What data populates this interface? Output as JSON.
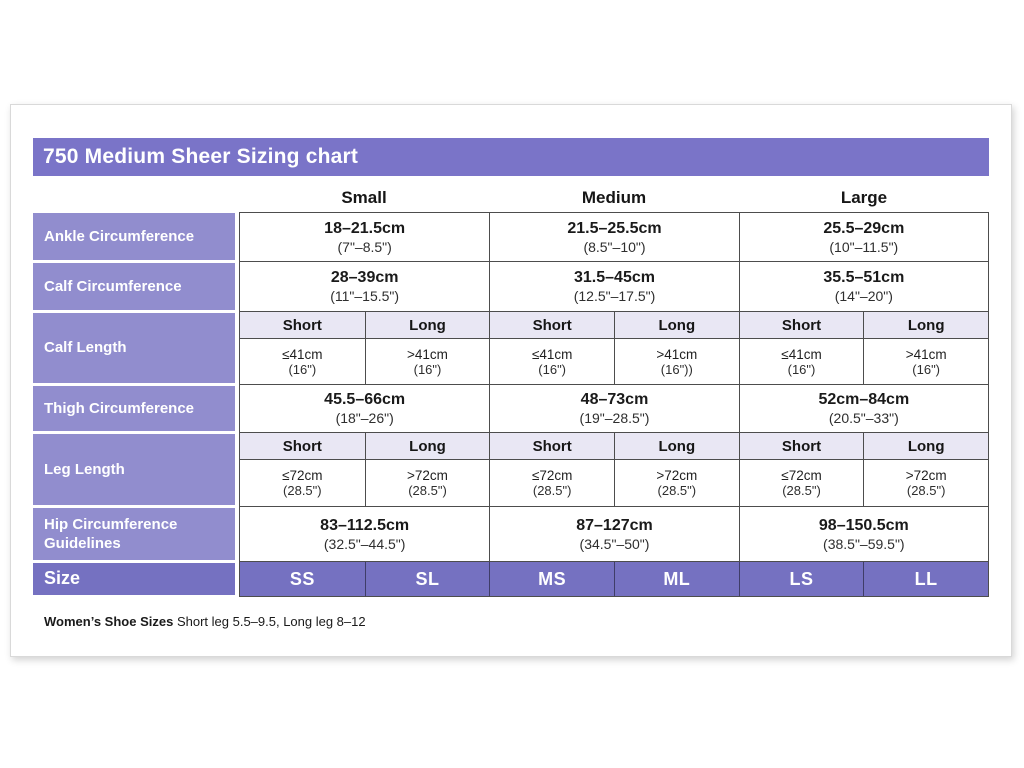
{
  "title": "750 Medium Sheer Sizing chart",
  "columns": {
    "small": "Small",
    "medium": "Medium",
    "large": "Large"
  },
  "rows": {
    "ankle": {
      "label": "Ankle Circumference",
      "small": {
        "cm": "18–21.5cm",
        "in": "(7\"–8.5\")"
      },
      "medium": {
        "cm": "21.5–25.5cm",
        "in": "(8.5\"–10\")"
      },
      "large": {
        "cm": "25.5–29cm",
        "in": "(10\"–11.5\")"
      }
    },
    "calf_circumference": {
      "label": "Calf Circumference",
      "small": {
        "cm": "28–39cm",
        "in": "(11\"–15.5\")"
      },
      "medium": {
        "cm": "31.5–45cm",
        "in": "(12.5\"–17.5\")"
      },
      "large": {
        "cm": "35.5–51cm",
        "in": "(14\"–20\")"
      }
    },
    "calf_length": {
      "label": "Calf Length",
      "cols": [
        {
          "head": "Short",
          "cm": "≤41cm",
          "in": "(16\")"
        },
        {
          "head": "Long",
          "cm": ">41cm",
          "in": "(16\")"
        },
        {
          "head": "Short",
          "cm": "≤41cm",
          "in": "(16\")"
        },
        {
          "head": "Long",
          "cm": ">41cm",
          "in": "(16\"))"
        },
        {
          "head": "Short",
          "cm": "≤41cm",
          "in": "(16\")"
        },
        {
          "head": "Long",
          "cm": ">41cm",
          "in": "(16\")"
        }
      ]
    },
    "thigh": {
      "label": "Thigh Circumference",
      "small": {
        "cm": "45.5–66cm",
        "in": "(18\"–26\")"
      },
      "medium": {
        "cm": "48–73cm",
        "in": "(19\"–28.5\")"
      },
      "large": {
        "cm": "52cm–84cm",
        "in": "(20.5\"–33\")"
      }
    },
    "leg_length": {
      "label": "Leg Length",
      "cols": [
        {
          "head": "Short",
          "cm": "≤72cm",
          "in": "(28.5\")"
        },
        {
          "head": "Long",
          "cm": ">72cm",
          "in": "(28.5\")"
        },
        {
          "head": "Short",
          "cm": "≤72cm",
          "in": "(28.5\")"
        },
        {
          "head": "Long",
          "cm": ">72cm",
          "in": "(28.5\")"
        },
        {
          "head": "Short",
          "cm": "≤72cm",
          "in": "(28.5\")"
        },
        {
          "head": "Long",
          "cm": ">72cm",
          "in": "(28.5\")"
        }
      ]
    },
    "hip": {
      "label": "Hip Circumference Guidelines",
      "small": {
        "cm": "83–112.5cm",
        "in": "(32.5\"–44.5\")"
      },
      "medium": {
        "cm": "87–127cm",
        "in": "(34.5\"–50\")"
      },
      "large": {
        "cm": "98–150.5cm",
        "in": "(38.5\"–59.5\")"
      }
    },
    "size": {
      "label": "Size",
      "values": [
        "SS",
        "SL",
        "MS",
        "ML",
        "LS",
        "LL"
      ]
    }
  },
  "footnote": {
    "bold": "Women’s Shoe Sizes",
    "text": "Short leg 5.5–9.5, Long leg 8–12"
  },
  "colors": {
    "title_purple": "#7a74c8",
    "label_purple": "#918dce",
    "size_purple": "#7571c1",
    "subhead_lavender": "#e9e7f4"
  }
}
